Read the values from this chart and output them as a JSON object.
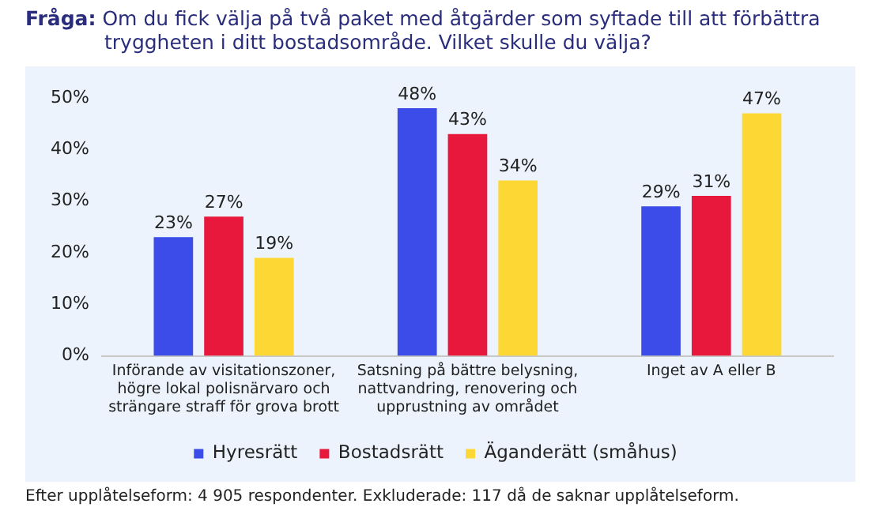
{
  "chart_data": {
    "type": "bar",
    "title": "Fråga: Om du fick välja på två paket med åtgärder som syftade till att förbättra tryggheten i ditt bostadsområde. Vilket skulle du välja?",
    "categories": [
      "Införande av visitationszoner, högre lokal polisnärvaro och strängare straff för grova brott",
      "Satsning på bättre belysning, nattvandring, renovering och upprustning av området",
      "Inget av A eller B"
    ],
    "series": [
      {
        "name": "Hyresrätt",
        "color": "#3b4ce8",
        "values": [
          23,
          48,
          29
        ],
        "value_labels": [
          "23%",
          "48%",
          "29%"
        ]
      },
      {
        "name": "Bostadsrätt",
        "color": "#e8183c",
        "values": [
          27,
          43,
          31
        ],
        "value_labels": [
          "27%",
          "43%",
          "31%"
        ]
      },
      {
        "name": "Äganderätt (småhus)",
        "color": "#fdd835",
        "values": [
          19,
          34,
          47
        ],
        "value_labels": [
          "19%",
          "34%",
          "47%"
        ]
      }
    ],
    "ylim": [
      0,
      50
    ],
    "yticks": [
      {
        "value": 0,
        "label": "0%"
      },
      {
        "value": 10,
        "label": "10%"
      },
      {
        "value": 20,
        "label": "20%"
      },
      {
        "value": 30,
        "label": "30%"
      },
      {
        "value": 40,
        "label": "40%"
      },
      {
        "value": 50,
        "label": "50%"
      }
    ],
    "grid": false,
    "legend": "bottom",
    "annotations": [
      "Efter upplåtelseform: 4 905 respondenter. Exkluderade: 117 då de saknar upplåtelseform."
    ]
  }
}
